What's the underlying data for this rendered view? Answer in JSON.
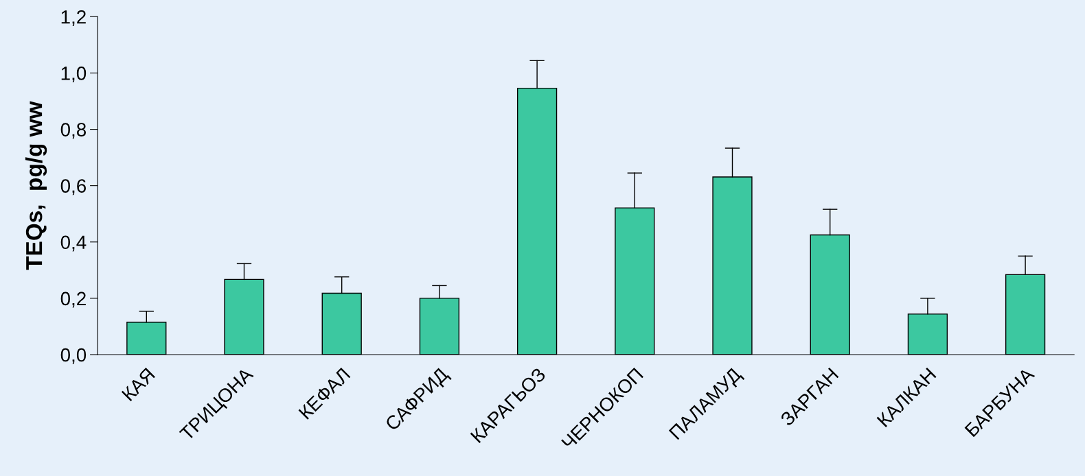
{
  "chart_data": {
    "type": "bar",
    "ylabel": "TEQs,  pg/g ww",
    "categories": [
      "КАЯ",
      "ТРИЦОНА",
      "КЕФАЛ",
      "САФРИД",
      "КАРАГЬОЗ",
      "ЧЕРНОКОП",
      "ПАЛАМУД",
      "ЗАРГАН",
      "КАЛКАН",
      "БАРБУНА"
    ],
    "values": [
      0.115,
      0.267,
      0.218,
      0.2,
      0.946,
      0.521,
      0.631,
      0.425,
      0.144,
      0.284
    ],
    "errors": [
      [
        0.115,
        0.154
      ],
      [
        0.267,
        0.323
      ],
      [
        0.218,
        0.276
      ],
      [
        0.2,
        0.245
      ],
      [
        0.946,
        1.044
      ],
      [
        0.521,
        0.645
      ],
      [
        0.631,
        0.733
      ],
      [
        0.425,
        0.516
      ],
      [
        0.144,
        0.2
      ],
      [
        0.284,
        0.35
      ]
    ],
    "color": "#3cc8a0",
    "ylim": [
      0,
      1.2
    ],
    "yticks": [
      {
        "value": 0,
        "label": "0,0"
      },
      {
        "value": 0.2,
        "label": "0,2"
      },
      {
        "value": 0.4,
        "label": "0,4"
      },
      {
        "value": 0.6,
        "label": "0,6"
      },
      {
        "value": 0.8,
        "label": "0,8"
      },
      {
        "value": 1.0,
        "label": "1,0"
      },
      {
        "value": 1.2,
        "label": "1,2"
      }
    ],
    "grid": false,
    "legend": false
  }
}
